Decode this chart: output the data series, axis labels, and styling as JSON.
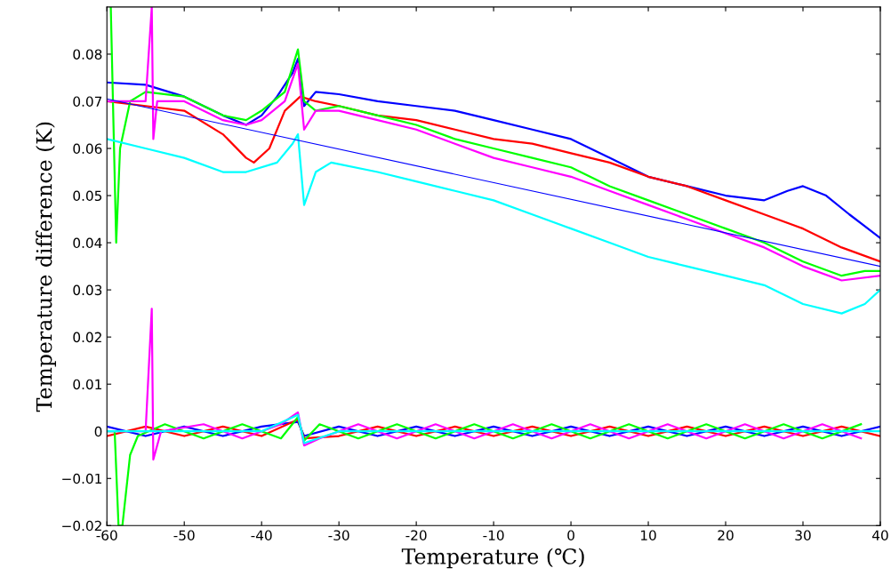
{
  "chart_data": {
    "type": "line",
    "xlabel": "Temperature (℃)",
    "ylabel": "Temperature difference (K)",
    "xlim": [
      -60,
      40
    ],
    "ylim": [
      -0.02,
      0.09
    ],
    "xticks": [
      -60,
      -50,
      -40,
      -30,
      -20,
      -10,
      0,
      10,
      20,
      30,
      40
    ],
    "yticks": [
      {
        "value": -0.02,
        "label": "−0.02"
      },
      {
        "value": -0.01,
        "label": "−0.01"
      },
      0,
      0.01,
      0.02,
      0.03,
      0.04,
      0.05,
      0.06,
      0.07,
      0.08
    ],
    "grid": false,
    "legend": false,
    "series": [
      {
        "color": "#0000ff",
        "x": [
          -60,
          -55,
          -50,
          -45,
          -42,
          -40,
          -38,
          -36,
          -35.3,
          -34.5,
          -33,
          -30,
          -25,
          -20,
          -15,
          -10,
          -5,
          0,
          5,
          10,
          15,
          20,
          25,
          28,
          30,
          33,
          36,
          40
        ],
        "values": [
          0.074,
          0.0735,
          0.071,
          0.067,
          0.065,
          0.067,
          0.071,
          0.076,
          0.079,
          0.069,
          0.072,
          0.0715,
          0.07,
          0.069,
          0.068,
          0.066,
          0.064,
          0.062,
          0.058,
          0.054,
          0.052,
          0.05,
          0.049,
          0.051,
          0.052,
          0.05,
          0.046,
          0.041
        ]
      },
      {
        "color": "#ff0000",
        "x": [
          -60,
          -55,
          -50,
          -45,
          -42,
          -41,
          -39,
          -37,
          -35,
          -33,
          -30,
          -25,
          -20,
          -15,
          -10,
          -5,
          0,
          5,
          10,
          15,
          20,
          25,
          30,
          35,
          40
        ],
        "values": [
          0.07,
          0.069,
          0.068,
          0.063,
          0.058,
          0.057,
          0.06,
          0.068,
          0.071,
          0.07,
          0.069,
          0.067,
          0.066,
          0.064,
          0.062,
          0.061,
          0.059,
          0.057,
          0.054,
          0.052,
          0.049,
          0.046,
          0.043,
          0.039,
          0.036
        ]
      },
      {
        "color": "#00ff00",
        "x": [
          -59.5,
          -58.8,
          -58.3,
          -57,
          -55,
          -50,
          -45,
          -42,
          -40,
          -37,
          -35.3,
          -34.5,
          -33,
          -30,
          -25,
          -20,
          -15,
          -10,
          -5,
          0,
          5,
          10,
          15,
          20,
          25,
          30,
          35,
          38,
          40
        ],
        "values": [
          0.09,
          0.04,
          0.06,
          0.07,
          0.072,
          0.071,
          0.067,
          0.066,
          0.068,
          0.072,
          0.081,
          0.07,
          0.068,
          0.069,
          0.067,
          0.065,
          0.062,
          0.06,
          0.058,
          0.056,
          0.052,
          0.049,
          0.046,
          0.043,
          0.04,
          0.036,
          0.033,
          0.034,
          0.034
        ]
      },
      {
        "color": "#ff00ff",
        "x": [
          -60,
          -55,
          -54.2,
          -54,
          -53.5,
          -50,
          -45,
          -42,
          -40,
          -37,
          -35.3,
          -34.5,
          -33,
          -30,
          -25,
          -20,
          -15,
          -10,
          -5,
          0,
          5,
          10,
          15,
          20,
          25,
          30,
          35,
          40
        ],
        "values": [
          0.07,
          0.07,
          0.09,
          0.062,
          0.07,
          0.07,
          0.066,
          0.065,
          0.066,
          0.07,
          0.078,
          0.064,
          0.068,
          0.068,
          0.066,
          0.064,
          0.061,
          0.058,
          0.056,
          0.054,
          0.051,
          0.048,
          0.045,
          0.042,
          0.039,
          0.035,
          0.032,
          0.033
        ]
      },
      {
        "color": "#00ffff",
        "x": [
          -60,
          -55,
          -50,
          -45,
          -42,
          -38,
          -36,
          -35.3,
          -34.5,
          -33,
          -31,
          -25,
          -20,
          -15,
          -10,
          -5,
          0,
          5,
          10,
          15,
          20,
          25,
          30,
          35,
          38,
          40
        ],
        "values": [
          0.062,
          0.06,
          0.058,
          0.055,
          0.055,
          0.057,
          0.061,
          0.063,
          0.048,
          0.055,
          0.057,
          0.055,
          0.053,
          0.051,
          0.049,
          0.046,
          0.043,
          0.04,
          0.037,
          0.035,
          0.033,
          0.031,
          0.027,
          0.025,
          0.027,
          0.03
        ]
      },
      {
        "color": "#0000ff",
        "x": [
          -60,
          40
        ],
        "values": [
          0.0705,
          0.035
        ]
      },
      {
        "color": "#0000ff",
        "x": [
          -60,
          -55,
          -50,
          -45,
          -40,
          -35.3,
          -34.5,
          -30,
          -25,
          -20,
          -15,
          -10,
          -5,
          0,
          5,
          10,
          15,
          20,
          25,
          30,
          35,
          40
        ],
        "values": [
          0.001,
          -0.001,
          0.001,
          -0.001,
          0.001,
          0.002,
          -0.001,
          0.001,
          -0.001,
          0.001,
          -0.001,
          0.001,
          -0.001,
          0.001,
          -0.001,
          0.001,
          -0.001,
          0.001,
          -0.001,
          0.001,
          -0.001,
          0.001
        ]
      },
      {
        "color": "#ff0000",
        "x": [
          -60,
          -55,
          -50,
          -45,
          -40,
          -35.3,
          -34.5,
          -30,
          -25,
          -20,
          -15,
          -10,
          -5,
          0,
          5,
          10,
          15,
          20,
          25,
          30,
          35,
          40
        ],
        "values": [
          -0.001,
          0.001,
          -0.001,
          0.001,
          -0.001,
          0.0025,
          -0.0015,
          -0.001,
          0.001,
          -0.001,
          0.001,
          -0.001,
          0.001,
          -0.001,
          0.001,
          -0.001,
          0.001,
          -0.001,
          0.001,
          -0.001,
          0.001,
          -0.001
        ]
      },
      {
        "color": "#00ff00",
        "x": [
          -60,
          -59,
          -58.5,
          -58,
          -57,
          -56,
          -52.5,
          -47.5,
          -42.5,
          -37.5,
          -35.3,
          -34.5,
          -32.5,
          -27.5,
          -22.5,
          -17.5,
          -12.5,
          -7.5,
          -2.5,
          2.5,
          7.5,
          12.5,
          17.5,
          22.5,
          27.5,
          32.5,
          37.5
        ],
        "values": [
          0,
          0,
          -0.02,
          -0.02,
          -0.005,
          -0.001,
          0.0015,
          -0.0015,
          0.0015,
          -0.0015,
          0.003,
          -0.002,
          0.0015,
          -0.0015,
          0.0015,
          -0.0015,
          0.0015,
          -0.0015,
          0.0015,
          -0.0015,
          0.0015,
          -0.0015,
          0.0015,
          -0.0015,
          0.0015,
          -0.0015,
          0.0015
        ]
      },
      {
        "color": "#ff00ff",
        "x": [
          -60,
          -55,
          -54.2,
          -54,
          -53,
          -47.5,
          -42.5,
          -37.5,
          -35.3,
          -34.5,
          -32.5,
          -27.5,
          -22.5,
          -17.5,
          -12.5,
          -7.5,
          -2.5,
          2.5,
          7.5,
          12.5,
          17.5,
          22.5,
          27.5,
          32.5,
          37.5
        ],
        "values": [
          0,
          0,
          0.026,
          -0.006,
          0,
          0.0015,
          -0.0015,
          0.0015,
          0.004,
          -0.003,
          -0.0015,
          0.0015,
          -0.0015,
          0.0015,
          -0.0015,
          0.0015,
          -0.0015,
          0.0015,
          -0.0015,
          0.0015,
          -0.0015,
          0.0015,
          -0.0015,
          0.0015,
          -0.0015
        ]
      },
      {
        "color": "#00ffff",
        "x": [
          -60,
          -50,
          -40,
          -35.3,
          -34.5,
          -30,
          -20,
          -10,
          0,
          10,
          20,
          30,
          40
        ],
        "values": [
          0,
          0,
          0,
          0.0035,
          -0.0025,
          0,
          0,
          0,
          0,
          0,
          0,
          0,
          0
        ]
      }
    ]
  }
}
